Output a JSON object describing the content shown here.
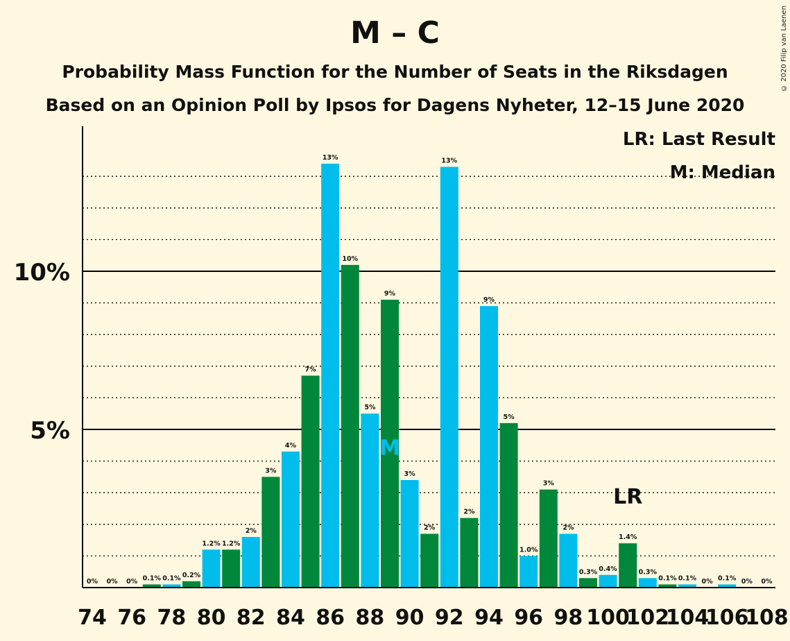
{
  "title": "M – C",
  "subtitle_1": "Probability Mass Function for the Number of Seats in the Riksdagen",
  "subtitle_2": "Based on an Opinion Poll by Ipsos for Dagens Nyheter, 12–15 June 2020",
  "copyright": "© 2020 Filip van Laenen",
  "legend": {
    "last_result": "LR: Last Result",
    "median": "M: Median"
  },
  "colors": {
    "blue": "#00bdeb",
    "green": "#00873c",
    "background": "#fff8e0"
  },
  "chart_data": {
    "type": "bar",
    "title": "M – C",
    "x": [
      74,
      75,
      76,
      77,
      78,
      79,
      80,
      81,
      82,
      83,
      84,
      85,
      86,
      87,
      88,
      89,
      90,
      91,
      92,
      93,
      94,
      95,
      96,
      97,
      98,
      99,
      100,
      101,
      102,
      103,
      104,
      105,
      106,
      107,
      108
    ],
    "values": [
      0,
      0,
      0,
      0.1,
      0.1,
      0.2,
      1.2,
      1.2,
      1.6,
      3.5,
      4.3,
      6.7,
      13.4,
      10.2,
      5.5,
      9.1,
      3.4,
      1.7,
      13.3,
      2.2,
      8.9,
      5.2,
      1.0,
      3.1,
      1.7,
      0.3,
      0.4,
      1.4,
      0.3,
      0.1,
      0.1,
      0.0,
      0.1,
      0,
      0
    ],
    "labels": [
      "0%",
      "0%",
      "0%",
      "0.1%",
      "0.1%",
      "0.2%",
      "1.2%",
      "1.2%",
      "2%",
      "3%",
      "4%",
      "7%",
      "13%",
      "10%",
      "5%",
      "9%",
      "3%",
      "2%",
      "13%",
      "2%",
      "9%",
      "5%",
      "1.0%",
      "3%",
      "2%",
      "0.3%",
      "0.4%",
      "1.4%",
      "0.3%",
      "0.1%",
      "0.1%",
      "0%",
      "0.1%",
      "0%",
      "0%"
    ],
    "x_tick_labels": [
      "74",
      "76",
      "78",
      "80",
      "82",
      "84",
      "86",
      "88",
      "90",
      "92",
      "94",
      "96",
      "98",
      "100",
      "102",
      "104",
      "106",
      "108"
    ],
    "y_tick_labels": [
      {
        "value": 5,
        "label": "5%"
      },
      {
        "value": 10,
        "label": "10%"
      }
    ],
    "ylim": [
      0,
      14.5
    ],
    "bar_colors": "alternating blue (even seats) / green (odd seats)",
    "median": 89,
    "last_result": 101,
    "median_marker": "M",
    "last_result_marker": "LR",
    "grid": "dotted every 1%, solid at 5% and 10%"
  }
}
